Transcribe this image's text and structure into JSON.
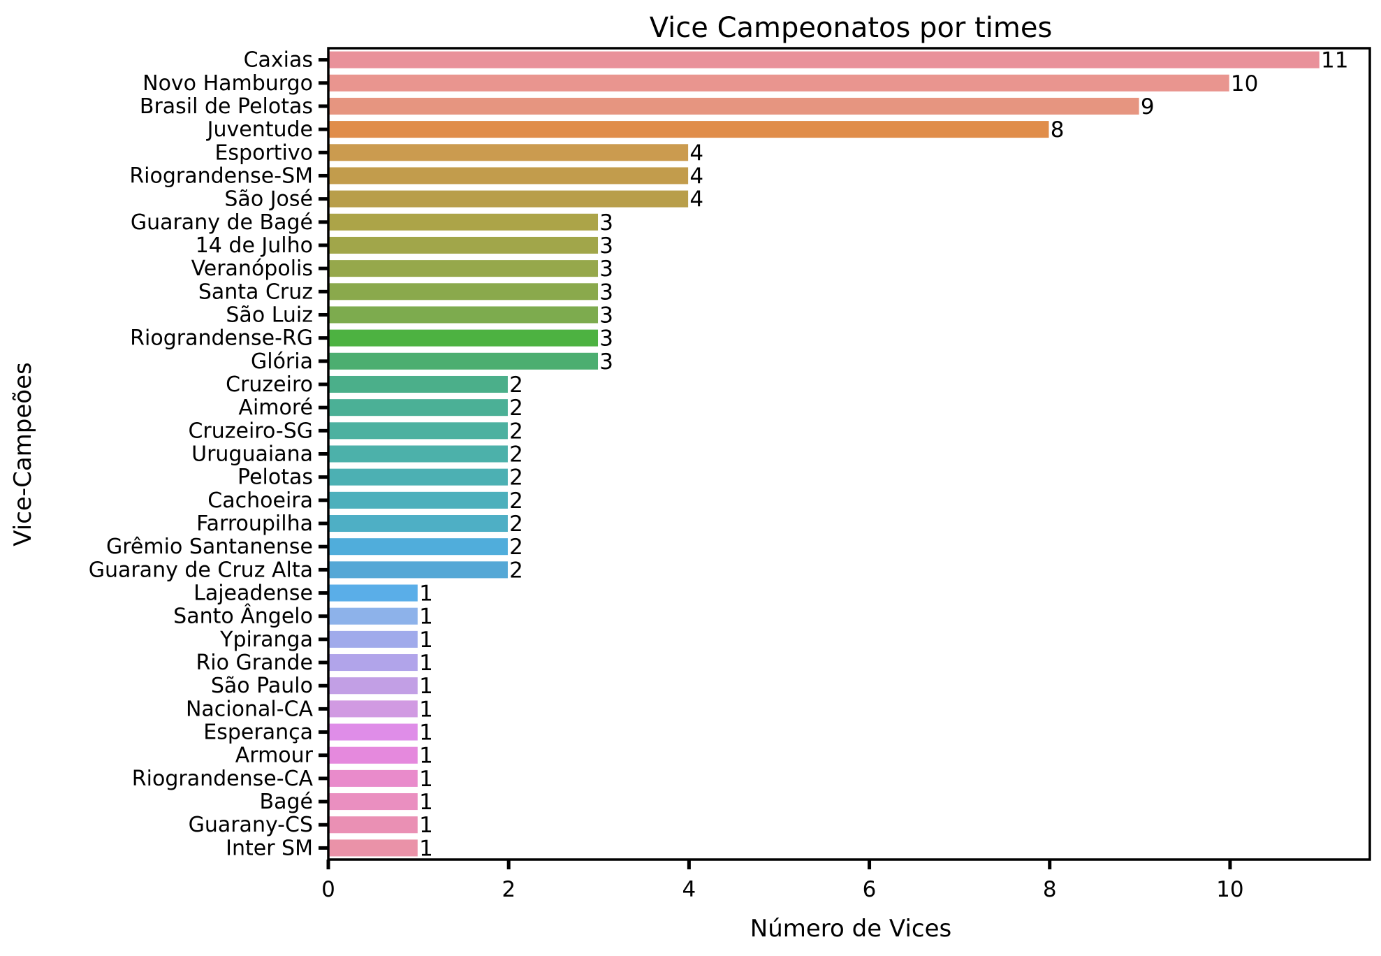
{
  "chart_data": {
    "type": "bar",
    "orientation": "horizontal",
    "title": "Vice Campeonatos por times",
    "xlabel": "Número de Vices",
    "ylabel": "Vice-Campeões",
    "xlim": [
      0,
      11.55
    ],
    "xticks": [
      "0",
      "2",
      "4",
      "6",
      "8",
      "10"
    ],
    "grid": false,
    "categories": [
      "Caxias",
      "Novo Hamburgo",
      "Brasil de Pelotas",
      "Juventude",
      "Esportivo",
      "Riograndense-SM",
      "São José",
      "Guarany de Bagé",
      "14 de Julho",
      "Veranópolis",
      "Santa Cruz",
      "São Luiz",
      "Riograndense-RG",
      "Glória",
      "Cruzeiro",
      "Aimoré",
      "Cruzeiro-SG",
      "Uruguaiana",
      "Pelotas",
      "Cachoeira",
      "Farroupilha",
      "Grêmio Santanense",
      "Guarany de Cruz Alta",
      "Lajeadense",
      "Santo Ângelo",
      "Ypiranga",
      "Rio Grande",
      "São Paulo",
      "Nacional-CA",
      "Esperança",
      "Armour",
      "Riograndense-CA",
      "Bagé",
      "Guarany-CS",
      "Inter SM"
    ],
    "values": [
      11,
      10,
      9,
      8,
      4,
      4,
      4,
      3,
      3,
      3,
      3,
      3,
      3,
      3,
      2,
      2,
      2,
      2,
      2,
      2,
      2,
      2,
      2,
      1,
      1,
      1,
      1,
      1,
      1,
      1,
      1,
      1,
      1,
      1,
      1
    ],
    "value_labels": [
      "11",
      "10",
      "9",
      "8",
      "4",
      "4",
      "4",
      "3",
      "3",
      "3",
      "3",
      "3",
      "3",
      "3",
      "2",
      "2",
      "2",
      "2",
      "2",
      "2",
      "2",
      "2",
      "2",
      "1",
      "1",
      "1",
      "1",
      "1",
      "1",
      "1",
      "1",
      "1",
      "1",
      "1",
      "1"
    ],
    "colors": [
      "#e9919a",
      "#e9958f",
      "#e69580",
      "#e08d4a",
      "#cb9b4f",
      "#c29c4c",
      "#b89e4a",
      "#aca448",
      "#a1a64a",
      "#96a84b",
      "#8aa94c",
      "#7dab4e",
      "#4db241",
      "#4cae70",
      "#4baf8a",
      "#4bb096",
      "#4cb1a0",
      "#4cb1aa",
      "#4cb0b3",
      "#4db0bc",
      "#4eafc5",
      "#50addb",
      "#55a8d6",
      "#5aaee8",
      "#8db2ea",
      "#a0aaeb",
      "#b1a4ea",
      "#c29fe5",
      "#d19ae2",
      "#df8de8",
      "#e589dd",
      "#e98bcb",
      "#ea8fc0",
      "#ea90b4",
      "#ea92a8"
    ]
  }
}
